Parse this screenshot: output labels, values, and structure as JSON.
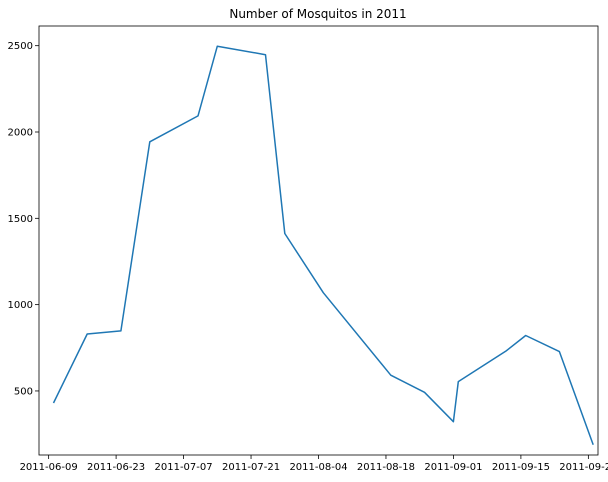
{
  "chart_data": {
    "type": "line",
    "title": "Number of Mosquitos in 2011",
    "xlabel": "",
    "ylabel": "",
    "x_tick_labels": [
      "2011-06-09",
      "2011-06-23",
      "2011-07-07",
      "2011-07-21",
      "2011-08-04",
      "2011-08-18",
      "2011-09-01",
      "2011-09-15",
      "2011-09-29"
    ],
    "y_tick_labels": [
      "500",
      "1000",
      "1500",
      "2000",
      "2500"
    ],
    "y_ticks": [
      500,
      1000,
      1500,
      2000,
      2500
    ],
    "xlim": [
      "2011-06-07",
      "2011-10-01"
    ],
    "ylim": [
      129,
      2614
    ],
    "grid": false,
    "series": [
      {
        "color": "#1f77b4",
        "points": [
          {
            "x": "2011-06-10",
            "y": 430
          },
          {
            "x": "2011-06-17",
            "y": 830
          },
          {
            "x": "2011-06-24",
            "y": 848
          },
          {
            "x": "2011-06-30",
            "y": 1943
          },
          {
            "x": "2011-07-10",
            "y": 2093
          },
          {
            "x": "2011-07-14",
            "y": 2497
          },
          {
            "x": "2011-07-24",
            "y": 2448
          },
          {
            "x": "2011-07-28",
            "y": 1412
          },
          {
            "x": "2011-08-05",
            "y": 1069
          },
          {
            "x": "2011-08-19",
            "y": 591
          },
          {
            "x": "2011-08-26",
            "y": 492
          },
          {
            "x": "2011-09-01",
            "y": 322
          },
          {
            "x": "2011-09-02",
            "y": 554
          },
          {
            "x": "2011-09-12",
            "y": 733
          },
          {
            "x": "2011-09-16",
            "y": 821
          },
          {
            "x": "2011-09-23",
            "y": 728
          },
          {
            "x": "2011-09-30",
            "y": 188
          }
        ]
      }
    ]
  }
}
